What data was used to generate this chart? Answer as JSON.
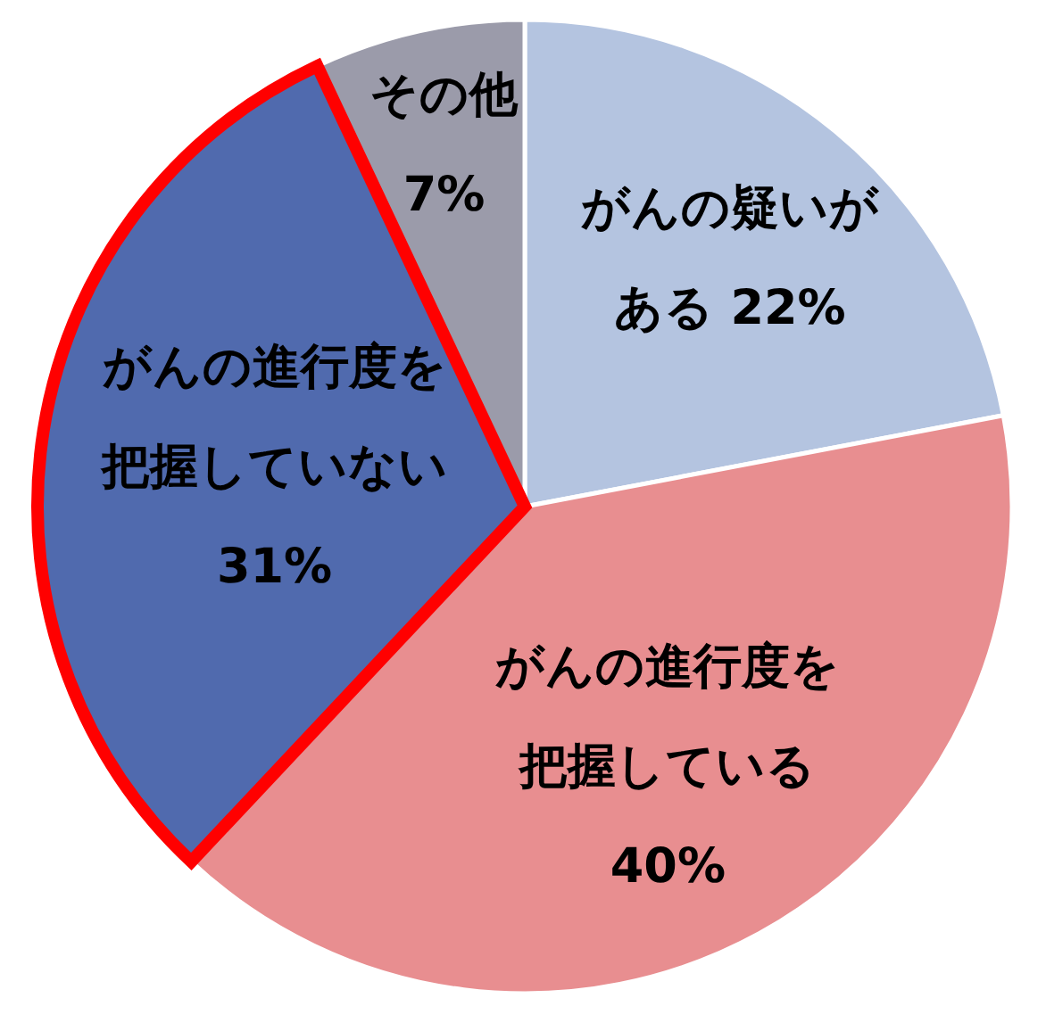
{
  "chart_data": {
    "type": "pie",
    "categories": [
      "がんの疑いがある",
      "がんの進行度を把握している",
      "がんの進行度を把握していない",
      "その他"
    ],
    "values": [
      22,
      40,
      31,
      7
    ],
    "value_labels": [
      "22%",
      "40%",
      "31%",
      "7%"
    ],
    "colors": [
      "#b4c4e0",
      "#e88e90",
      "#506aae",
      "#9b9baa"
    ]
  }
}
